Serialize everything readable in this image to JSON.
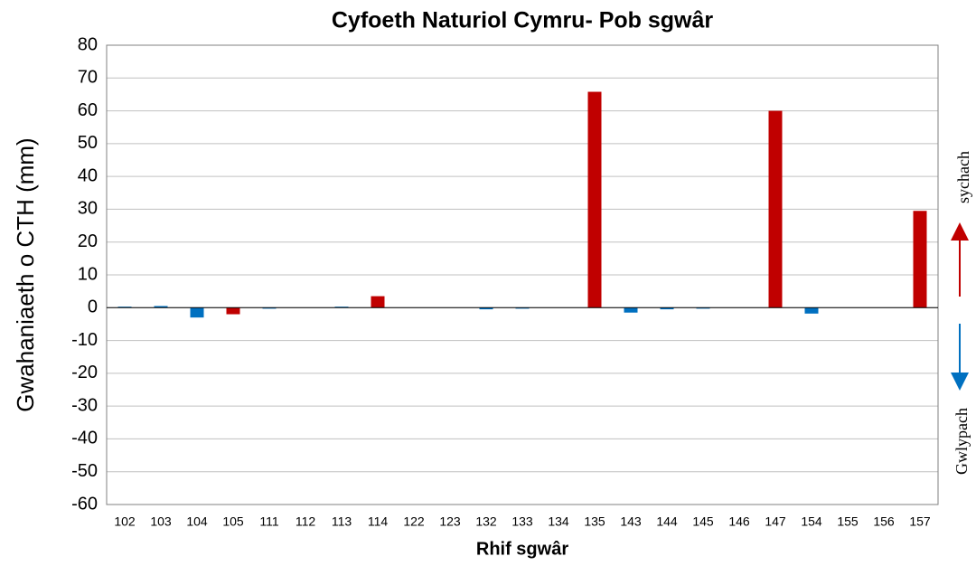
{
  "chart_data": {
    "type": "bar",
    "title": "Cyfoeth Naturiol Cymru- Pob sgwâr",
    "xlabel": "Rhif sgwâr",
    "ylabel": "Gwahaniaeth o CTH (mm)",
    "categories": [
      "102",
      "103",
      "104",
      "105",
      "111",
      "112",
      "113",
      "114",
      "122",
      "123",
      "132",
      "133",
      "134",
      "135",
      "143",
      "144",
      "145",
      "146",
      "147",
      "154",
      "155",
      "156",
      "157"
    ],
    "values": [
      0.3,
      0.5,
      -3,
      -2,
      -0.3,
      0,
      0.3,
      3.5,
      0,
      0,
      -0.5,
      -0.3,
      0,
      65.8,
      -1.5,
      -0.5,
      -0.3,
      0,
      60,
      -1.8,
      0,
      0,
      29.5
    ],
    "colors": [
      "#0070c0",
      "#0070c0",
      "#0070c0",
      "#c00000",
      "#0070c0",
      "#0070c0",
      "#0070c0",
      "#c00000",
      "#0070c0",
      "#0070c0",
      "#0070c0",
      "#0070c0",
      "#0070c0",
      "#c00000",
      "#0070c0",
      "#0070c0",
      "#0070c0",
      "#0070c0",
      "#c00000",
      "#0070c0",
      "#0070c0",
      "#0070c0",
      "#c00000"
    ],
    "ylim": [
      -60,
      80
    ],
    "yticks": [
      -60,
      -50,
      -40,
      -30,
      -20,
      -10,
      0,
      10,
      20,
      30,
      40,
      50,
      60,
      70,
      80
    ],
    "grid": true,
    "annotations": [
      "sychach",
      "Gwlypach"
    ]
  }
}
